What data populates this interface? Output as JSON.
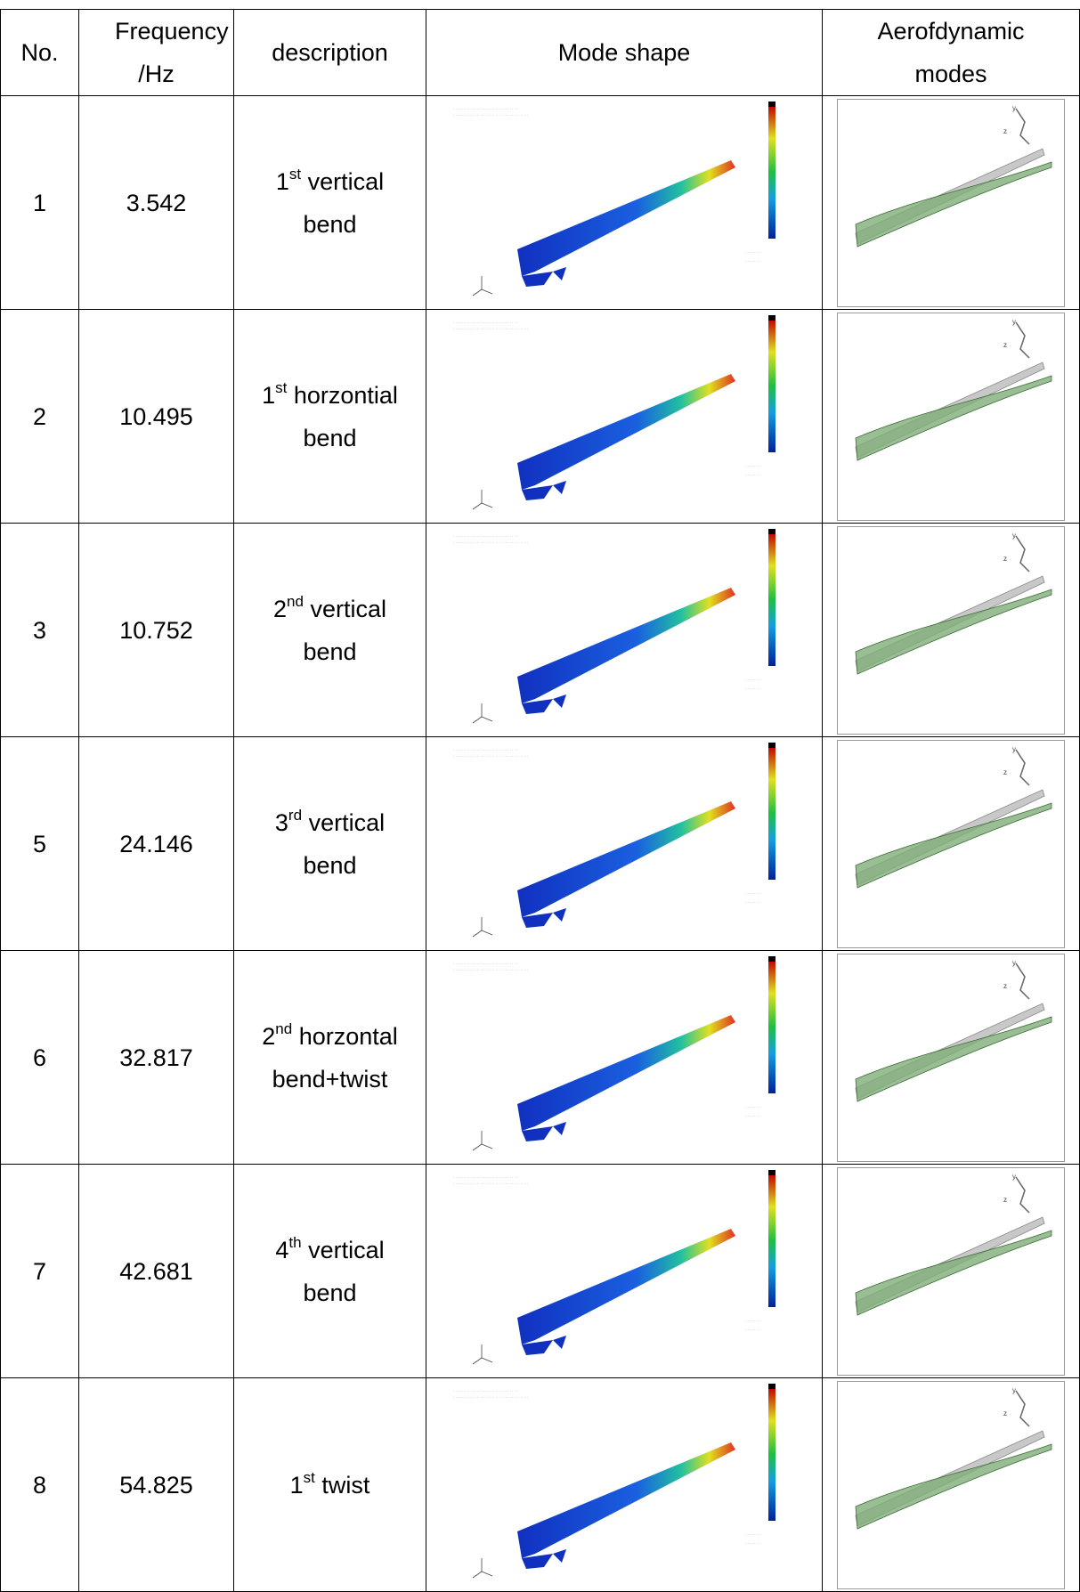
{
  "table": {
    "header": [
      "No.",
      "Frequency /Hz",
      "description",
      "Mode shape",
      "Aerofdynamic modes"
    ],
    "rows": [
      {
        "no": "1",
        "freq": "3.542",
        "ord": "1",
        "sup": "st",
        "desc": "vertical bend"
      },
      {
        "no": "2",
        "freq": "10.495",
        "ord": "1",
        "sup": "st",
        "desc": "horzontial bend"
      },
      {
        "no": "3",
        "freq": "10.752",
        "ord": "2",
        "sup": "nd",
        "desc": "vertical bend"
      },
      {
        "no": "5",
        "freq": "24.146",
        "ord": "3",
        "sup": "rd",
        "desc": "vertical bend"
      },
      {
        "no": "6",
        "freq": "32.817",
        "ord": "2",
        "sup": "nd",
        "desc": "horzontal bend+twist"
      },
      {
        "no": "7",
        "freq": "42.681",
        "ord": "4",
        "sup": "th",
        "desc": "vertical bend"
      },
      {
        "no": "8",
        "freq": "54.825",
        "ord": "1",
        "sup": "st",
        "desc": "twist"
      }
    ]
  }
}
